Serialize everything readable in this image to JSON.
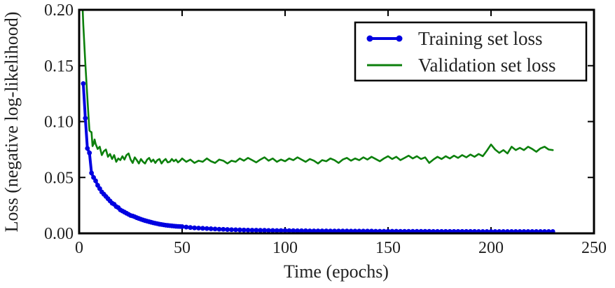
{
  "figure": {
    "background": "#ffffff",
    "spine_color": "#000000",
    "text_color": "#212121"
  },
  "chart_data": {
    "type": "line",
    "title": "",
    "xlabel": "Time (epochs)",
    "ylabel": "Loss (negative log-likelihood)",
    "xlim": [
      0,
      250
    ],
    "ylim": [
      0.0,
      0.2
    ],
    "x_ticks": [
      0,
      50,
      100,
      150,
      200,
      250
    ],
    "x_tick_labels": [
      "0",
      "50",
      "100",
      "150",
      "200",
      "250"
    ],
    "y_ticks": [
      0.0,
      0.05,
      0.1,
      0.15,
      0.2
    ],
    "y_tick_labels": [
      "0.00",
      "0.05",
      "0.10",
      "0.15",
      "0.20"
    ],
    "grid": false,
    "tick_direction": "in",
    "ticks_on_all_sides": true,
    "legend": {
      "position": "upper right",
      "border": true
    },
    "series": [
      {
        "name": "Training set loss",
        "color": "#0000e0",
        "marker": "circle",
        "marker_size": 3.4,
        "line_width": 4,
        "points": [
          [
            2,
            0.134
          ],
          [
            3,
            0.103
          ],
          [
            4,
            0.076
          ],
          [
            5,
            0.072
          ],
          [
            6,
            0.054
          ],
          [
            7,
            0.05
          ],
          [
            8,
            0.047
          ],
          [
            9,
            0.043
          ],
          [
            10,
            0.04
          ],
          [
            11,
            0.037
          ],
          [
            12,
            0.035
          ],
          [
            13,
            0.033
          ],
          [
            14,
            0.031
          ],
          [
            15,
            0.029
          ],
          [
            16,
            0.027
          ],
          [
            17,
            0.026
          ],
          [
            18,
            0.024
          ],
          [
            19,
            0.023
          ],
          [
            20,
            0.021
          ],
          [
            21,
            0.02
          ],
          [
            22,
            0.019
          ],
          [
            23,
            0.018
          ],
          [
            24,
            0.017
          ],
          [
            25,
            0.016
          ],
          [
            26,
            0.0155
          ],
          [
            27,
            0.0148
          ],
          [
            28,
            0.014
          ],
          [
            29,
            0.0133
          ],
          [
            30,
            0.0126
          ],
          [
            31,
            0.012
          ],
          [
            32,
            0.0114
          ],
          [
            33,
            0.0109
          ],
          [
            34,
            0.0104
          ],
          [
            35,
            0.0099
          ],
          [
            36,
            0.0094
          ],
          [
            37,
            0.009
          ],
          [
            38,
            0.0086
          ],
          [
            39,
            0.0082
          ],
          [
            40,
            0.0079
          ],
          [
            41,
            0.0076
          ],
          [
            42,
            0.0073
          ],
          [
            43,
            0.0071
          ],
          [
            44,
            0.0069
          ],
          [
            45,
            0.0067
          ],
          [
            46,
            0.0065
          ],
          [
            47,
            0.0063
          ],
          [
            48,
            0.0062
          ],
          [
            49,
            0.0061
          ],
          [
            50,
            0.006
          ],
          [
            52,
            0.0056
          ],
          [
            54,
            0.0052
          ],
          [
            56,
            0.0049
          ],
          [
            58,
            0.0047
          ],
          [
            60,
            0.0045
          ],
          [
            62,
            0.0043
          ],
          [
            64,
            0.0041
          ],
          [
            66,
            0.0039
          ],
          [
            68,
            0.0037
          ],
          [
            70,
            0.0036
          ],
          [
            72,
            0.0034
          ],
          [
            74,
            0.0033
          ],
          [
            76,
            0.0032
          ],
          [
            78,
            0.0031
          ],
          [
            80,
            0.003
          ],
          [
            82,
            0.0029
          ],
          [
            84,
            0.0028
          ],
          [
            86,
            0.0028
          ],
          [
            88,
            0.0027
          ],
          [
            90,
            0.0027
          ],
          [
            92,
            0.0026
          ],
          [
            94,
            0.0026
          ],
          [
            96,
            0.0025
          ],
          [
            98,
            0.0025
          ],
          [
            100,
            0.0025
          ],
          [
            102,
            0.0024
          ],
          [
            104,
            0.0024
          ],
          [
            106,
            0.0023
          ],
          [
            108,
            0.0023
          ],
          [
            110,
            0.0023
          ],
          [
            112,
            0.0022
          ],
          [
            114,
            0.0022
          ],
          [
            116,
            0.0022
          ],
          [
            118,
            0.0022
          ],
          [
            120,
            0.0022
          ],
          [
            122,
            0.0021
          ],
          [
            124,
            0.0021
          ],
          [
            126,
            0.0021
          ],
          [
            128,
            0.0021
          ],
          [
            130,
            0.0021
          ],
          [
            132,
            0.002
          ],
          [
            134,
            0.002
          ],
          [
            136,
            0.002
          ],
          [
            138,
            0.002
          ],
          [
            140,
            0.002
          ],
          [
            142,
            0.002
          ],
          [
            144,
            0.0019
          ],
          [
            146,
            0.0019
          ],
          [
            148,
            0.0019
          ],
          [
            150,
            0.0019
          ],
          [
            152,
            0.0019
          ],
          [
            154,
            0.0019
          ],
          [
            156,
            0.0018
          ],
          [
            158,
            0.0018
          ],
          [
            160,
            0.0018
          ],
          [
            162,
            0.0018
          ],
          [
            164,
            0.0018
          ],
          [
            166,
            0.0018
          ],
          [
            168,
            0.0018
          ],
          [
            170,
            0.0018
          ],
          [
            172,
            0.0017
          ],
          [
            174,
            0.0017
          ],
          [
            176,
            0.0017
          ],
          [
            178,
            0.0017
          ],
          [
            180,
            0.0017
          ],
          [
            182,
            0.0017
          ],
          [
            184,
            0.0017
          ],
          [
            186,
            0.0017
          ],
          [
            188,
            0.0017
          ],
          [
            190,
            0.0017
          ],
          [
            192,
            0.0017
          ],
          [
            194,
            0.0016
          ],
          [
            196,
            0.0016
          ],
          [
            198,
            0.0016
          ],
          [
            200,
            0.0016
          ],
          [
            202,
            0.0016
          ],
          [
            204,
            0.0016
          ],
          [
            206,
            0.0016
          ],
          [
            208,
            0.0016
          ],
          [
            210,
            0.0016
          ],
          [
            212,
            0.0016
          ],
          [
            214,
            0.0016
          ],
          [
            216,
            0.0016
          ],
          [
            218,
            0.0016
          ],
          [
            220,
            0.0016
          ],
          [
            222,
            0.0016
          ],
          [
            224,
            0.0016
          ],
          [
            226,
            0.0016
          ],
          [
            228,
            0.0016
          ],
          [
            230,
            0.0016
          ]
        ]
      },
      {
        "name": "Validation set loss",
        "color": "#0c800c",
        "marker": "none",
        "line_width": 2.6,
        "points": [
          [
            1.5,
            0.21
          ],
          [
            2,
            0.187
          ],
          [
            3,
            0.152
          ],
          [
            4,
            0.121
          ],
          [
            4.5,
            0.106
          ],
          [
            5,
            0.092
          ],
          [
            5.5,
            0.091
          ],
          [
            6,
            0.0905
          ],
          [
            6.5,
            0.078
          ],
          [
            7,
            0.08
          ],
          [
            7.5,
            0.084
          ],
          [
            8,
            0.08
          ],
          [
            9,
            0.0755
          ],
          [
            10,
            0.0775
          ],
          [
            11,
            0.07
          ],
          [
            12,
            0.0735
          ],
          [
            13,
            0.075
          ],
          [
            14,
            0.0685
          ],
          [
            15,
            0.071
          ],
          [
            16,
            0.0665
          ],
          [
            17,
            0.07
          ],
          [
            18,
            0.064
          ],
          [
            19,
            0.067
          ],
          [
            20,
            0.0655
          ],
          [
            21,
            0.069
          ],
          [
            22,
            0.066
          ],
          [
            23,
            0.07
          ],
          [
            24,
            0.0715
          ],
          [
            25,
            0.066
          ],
          [
            26,
            0.063
          ],
          [
            27,
            0.068
          ],
          [
            28,
            0.0655
          ],
          [
            29,
            0.0625
          ],
          [
            30,
            0.0665
          ],
          [
            31,
            0.064
          ],
          [
            32,
            0.0625
          ],
          [
            33,
            0.066
          ],
          [
            34,
            0.0675
          ],
          [
            35,
            0.064
          ],
          [
            36,
            0.066
          ],
          [
            37,
            0.063
          ],
          [
            38,
            0.0655
          ],
          [
            39,
            0.0665
          ],
          [
            40,
            0.0625
          ],
          [
            41,
            0.065
          ],
          [
            42,
            0.0665
          ],
          [
            43,
            0.0635
          ],
          [
            44,
            0.064
          ],
          [
            45,
            0.0665
          ],
          [
            46,
            0.0645
          ],
          [
            47,
            0.066
          ],
          [
            48,
            0.0635
          ],
          [
            49,
            0.065
          ],
          [
            50,
            0.067
          ],
          [
            52,
            0.064
          ],
          [
            54,
            0.066
          ],
          [
            56,
            0.063
          ],
          [
            58,
            0.065
          ],
          [
            60,
            0.064
          ],
          [
            62,
            0.067
          ],
          [
            64,
            0.0645
          ],
          [
            66,
            0.063
          ],
          [
            68,
            0.066
          ],
          [
            70,
            0.065
          ],
          [
            72,
            0.0625
          ],
          [
            74,
            0.065
          ],
          [
            76,
            0.064
          ],
          [
            78,
            0.067
          ],
          [
            80,
            0.065
          ],
          [
            82,
            0.0675
          ],
          [
            84,
            0.0655
          ],
          [
            86,
            0.0635
          ],
          [
            88,
            0.066
          ],
          [
            90,
            0.068
          ],
          [
            92,
            0.065
          ],
          [
            94,
            0.067
          ],
          [
            96,
            0.064
          ],
          [
            98,
            0.066
          ],
          [
            100,
            0.0645
          ],
          [
            102,
            0.067
          ],
          [
            104,
            0.0655
          ],
          [
            106,
            0.068
          ],
          [
            108,
            0.066
          ],
          [
            110,
            0.064
          ],
          [
            112,
            0.0665
          ],
          [
            114,
            0.065
          ],
          [
            116,
            0.0625
          ],
          [
            118,
            0.0655
          ],
          [
            120,
            0.0645
          ],
          [
            122,
            0.067
          ],
          [
            124,
            0.0655
          ],
          [
            126,
            0.063
          ],
          [
            128,
            0.066
          ],
          [
            130,
            0.0675
          ],
          [
            132,
            0.065
          ],
          [
            134,
            0.067
          ],
          [
            136,
            0.0655
          ],
          [
            138,
            0.068
          ],
          [
            140,
            0.066
          ],
          [
            142,
            0.0685
          ],
          [
            144,
            0.0665
          ],
          [
            146,
            0.0645
          ],
          [
            148,
            0.067
          ],
          [
            150,
            0.069
          ],
          [
            152,
            0.0665
          ],
          [
            154,
            0.0685
          ],
          [
            156,
            0.0655
          ],
          [
            158,
            0.0675
          ],
          [
            160,
            0.0695
          ],
          [
            162,
            0.067
          ],
          [
            164,
            0.069
          ],
          [
            166,
            0.0665
          ],
          [
            168,
            0.068
          ],
          [
            170,
            0.063
          ],
          [
            172,
            0.066
          ],
          [
            174,
            0.0685
          ],
          [
            176,
            0.0665
          ],
          [
            178,
            0.069
          ],
          [
            180,
            0.067
          ],
          [
            182,
            0.0695
          ],
          [
            184,
            0.0675
          ],
          [
            186,
            0.07
          ],
          [
            188,
            0.068
          ],
          [
            190,
            0.0705
          ],
          [
            192,
            0.0685
          ],
          [
            194,
            0.071
          ],
          [
            196,
            0.069
          ],
          [
            198,
            0.074
          ],
          [
            200,
            0.0795
          ],
          [
            202,
            0.075
          ],
          [
            204,
            0.072
          ],
          [
            206,
            0.0745
          ],
          [
            208,
            0.0715
          ],
          [
            210,
            0.0775
          ],
          [
            212,
            0.0745
          ],
          [
            214,
            0.0765
          ],
          [
            216,
            0.0745
          ],
          [
            218,
            0.0775
          ],
          [
            220,
            0.0755
          ],
          [
            222,
            0.073
          ],
          [
            224,
            0.076
          ],
          [
            226,
            0.0775
          ],
          [
            228,
            0.075
          ],
          [
            230,
            0.0745
          ]
        ]
      }
    ]
  }
}
